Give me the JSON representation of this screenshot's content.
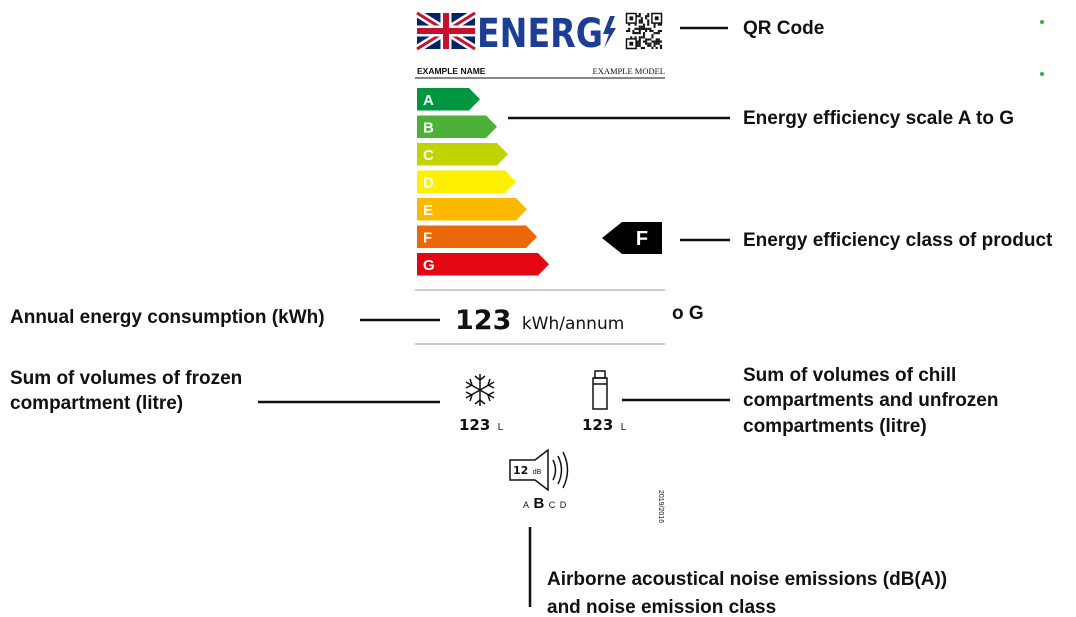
{
  "logo": {
    "text": "ENERG"
  },
  "label": {
    "supplier": "EXAMPLE NAME",
    "model": "EXAMPLE MODEL",
    "scale": [
      "A",
      "B",
      "C",
      "D",
      "E",
      "F",
      "G"
    ],
    "product_class": "F",
    "energy": {
      "value": "123",
      "unit": "kWh/annum"
    },
    "frozen": {
      "value": "123",
      "unit": "L"
    },
    "chill": {
      "value": "123",
      "unit": "L"
    },
    "noise": {
      "value": "12",
      "unit": "dB",
      "classes": [
        "A",
        "B",
        "C",
        "D"
      ]
    },
    "regulation": "2019/2016"
  },
  "annotations": {
    "qr": "QR Code",
    "scale": "Energy efficiency scale A to G",
    "class": "Energy efficiency class of product",
    "stray": "o G",
    "energy": "Annual energy consumption (kWh)",
    "frozen": [
      "Sum of volumes of frozen",
      "compartment (litre)"
    ],
    "chill": [
      "Sum of volumes of chill",
      "compartments and unfrozen",
      "compartments (litre)"
    ],
    "noise": [
      "Airborne acoustical noise emissions (dB(A))",
      "and noise emission class"
    ]
  }
}
